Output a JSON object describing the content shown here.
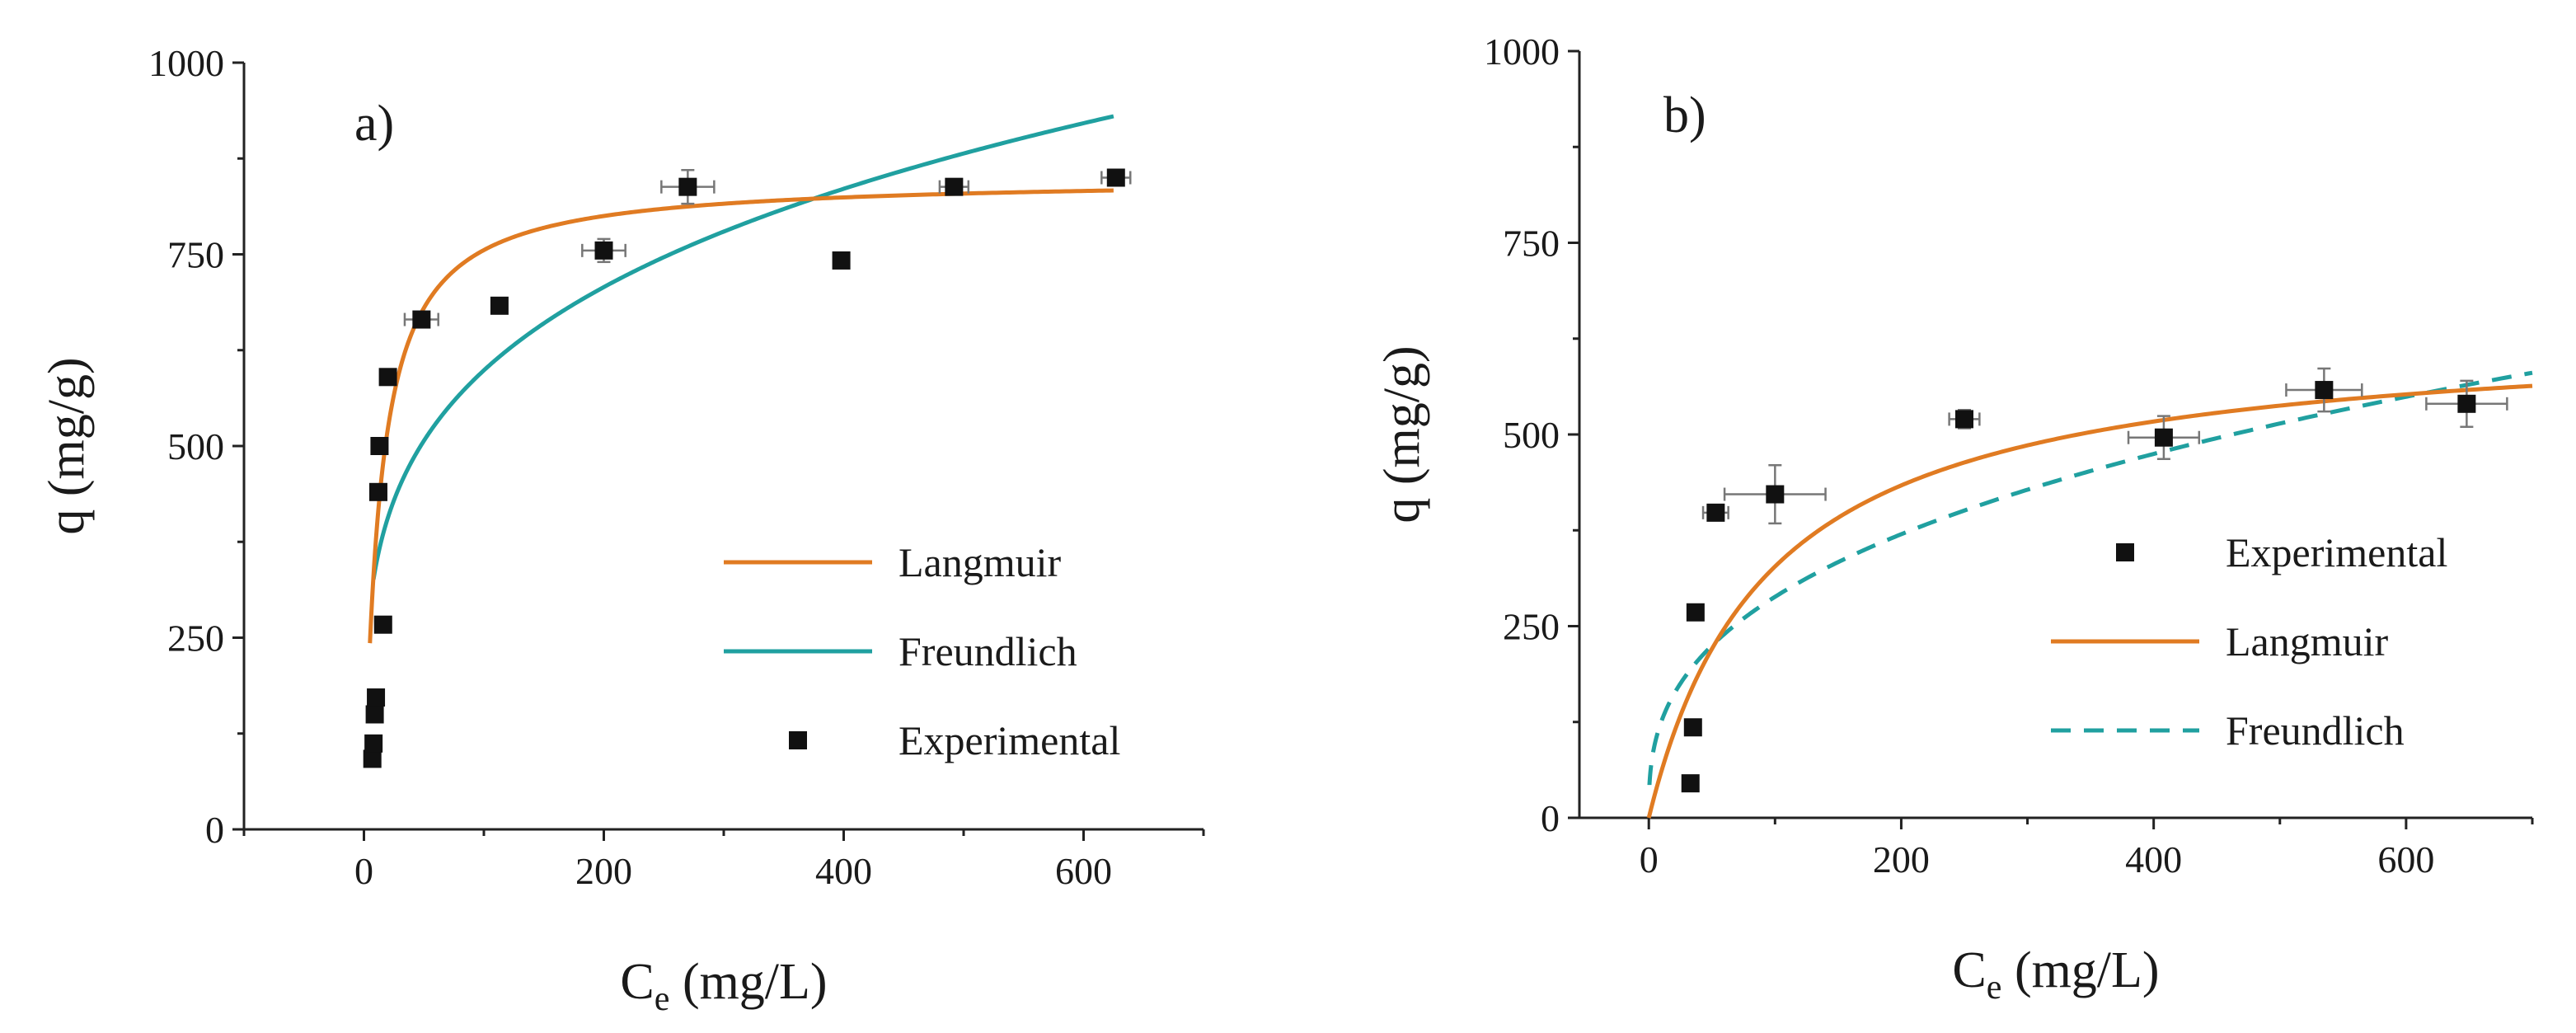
{
  "colors": {
    "langmuir": "#e07b22",
    "freundlich": "#20a0a0",
    "points": "#111111",
    "axis": "#222222"
  },
  "chart_data": [
    {
      "type": "scatter",
      "panel_label": "a)",
      "xlabel": {
        "main": "C",
        "sub": "e",
        "unit": " (mg/L)"
      },
      "ylabel": "q (mg/g)",
      "xlim": [
        -100,
        700
      ],
      "ylim": [
        0,
        1000
      ],
      "xticks": [
        0,
        200,
        400,
        600
      ],
      "yticks": [
        0,
        250,
        500,
        750,
        1000
      ],
      "legend_position": "bottom-right",
      "legend": [
        {
          "label": "Langmuir",
          "kind": "line",
          "series": "langmuir"
        },
        {
          "label": "Freundlich",
          "kind": "line",
          "series": "freundlich"
        },
        {
          "label": "Experimental",
          "kind": "point"
        }
      ],
      "models": {
        "langmuir": {
          "qmax": 850,
          "KL": 0.08,
          "x_range": [
            5,
            625
          ],
          "dashed": false
        },
        "freundlich": {
          "KF": 197.9,
          "n": 4.16,
          "x_range": [
            8,
            625
          ],
          "dashed": false
        }
      },
      "points": [
        {
          "x": 7,
          "y": 92
        },
        {
          "x": 8,
          "y": 112
        },
        {
          "x": 9,
          "y": 150
        },
        {
          "x": 10,
          "y": 172
        },
        {
          "x": 12,
          "y": 440
        },
        {
          "x": 13,
          "y": 500
        },
        {
          "x": 16,
          "y": 267
        },
        {
          "x": 20,
          "y": 590
        },
        {
          "x": 48,
          "y": 665,
          "xerr": 14,
          "yerr": 10
        },
        {
          "x": 113,
          "y": 683
        },
        {
          "x": 200,
          "y": 755,
          "xerr": 18,
          "yerr": 15
        },
        {
          "x": 270,
          "y": 838,
          "xerr": 22,
          "yerr": 22
        },
        {
          "x": 398,
          "y": 742
        },
        {
          "x": 492,
          "y": 838,
          "xerr": 12,
          "yerr": 10
        },
        {
          "x": 627,
          "y": 850,
          "xerr": 12,
          "yerr": 10
        }
      ]
    },
    {
      "type": "scatter",
      "panel_label": "b)",
      "xlabel": {
        "main": "C",
        "sub": "e",
        "unit": " (mg/L)"
      },
      "ylabel": "q (mg/g)",
      "xlim": [
        -55,
        700
      ],
      "ylim": [
        0,
        1000
      ],
      "xticks": [
        0,
        200,
        400,
        600
      ],
      "yticks": [
        0,
        250,
        500,
        750,
        1000
      ],
      "legend_position": "right",
      "legend": [
        {
          "label": "Experimental",
          "kind": "point"
        },
        {
          "label": "Langmuir",
          "kind": "line",
          "series": "langmuir"
        },
        {
          "label": "Freundlich",
          "kind": "dashed",
          "series": "freundlich"
        }
      ],
      "models": {
        "langmuir": {
          "qmax": 640,
          "KL": 0.0105,
          "x_range": [
            0,
            700
          ],
          "dashed": false
        },
        "freundlich": {
          "KF": 55.0,
          "n": 2.78,
          "x_range": [
            0.5,
            700
          ],
          "dashed": true
        }
      },
      "points": [
        {
          "x": 33,
          "y": 45
        },
        {
          "x": 35,
          "y": 118
        },
        {
          "x": 37,
          "y": 268
        },
        {
          "x": 53,
          "y": 398,
          "xerr": 10,
          "yerr": 10
        },
        {
          "x": 100,
          "y": 422,
          "xerr": 40,
          "yerr": 38
        },
        {
          "x": 250,
          "y": 520,
          "xerr": 12,
          "yerr": 12
        },
        {
          "x": 408,
          "y": 496,
          "xerr": 28,
          "yerr": 28
        },
        {
          "x": 535,
          "y": 558,
          "xerr": 30,
          "yerr": 28
        },
        {
          "x": 648,
          "y": 540,
          "xerr": 32,
          "yerr": 30
        }
      ]
    }
  ]
}
